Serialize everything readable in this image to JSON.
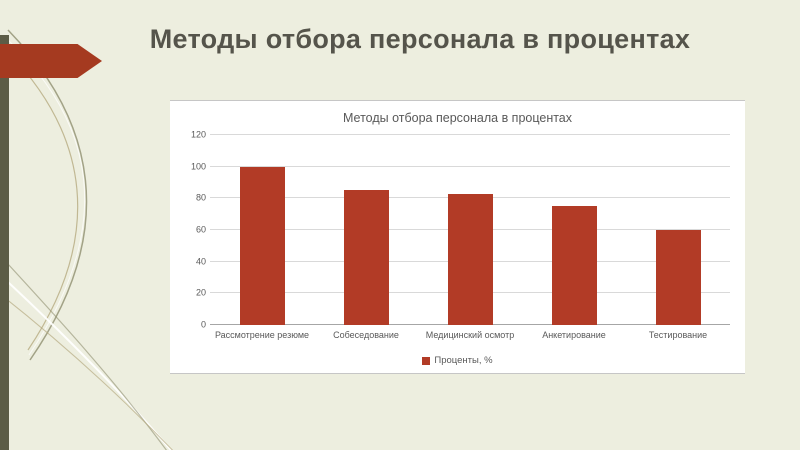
{
  "slide": {
    "title": "Методы отбора персонала в процентах"
  },
  "chart_data": {
    "type": "bar",
    "title": "Методы отбора персонала в процентах",
    "categories": [
      "Рассмотрение резюме",
      "Собеседование",
      "Медицинский осмотр",
      "Анкетирование",
      "Тестирование"
    ],
    "values": [
      100,
      85,
      83,
      75,
      60
    ],
    "legend": "Проценты, %",
    "xlabel": "",
    "ylabel": "",
    "ylim": [
      0,
      120
    ],
    "ytick_step": 20,
    "grid": true,
    "legend_position": "bottom",
    "bar_color": "#b23b26"
  },
  "colors": {
    "background": "#edeedf",
    "accent_red": "#a53a20",
    "stripe_olive": "#5c5c46",
    "text_gray": "#595959"
  }
}
